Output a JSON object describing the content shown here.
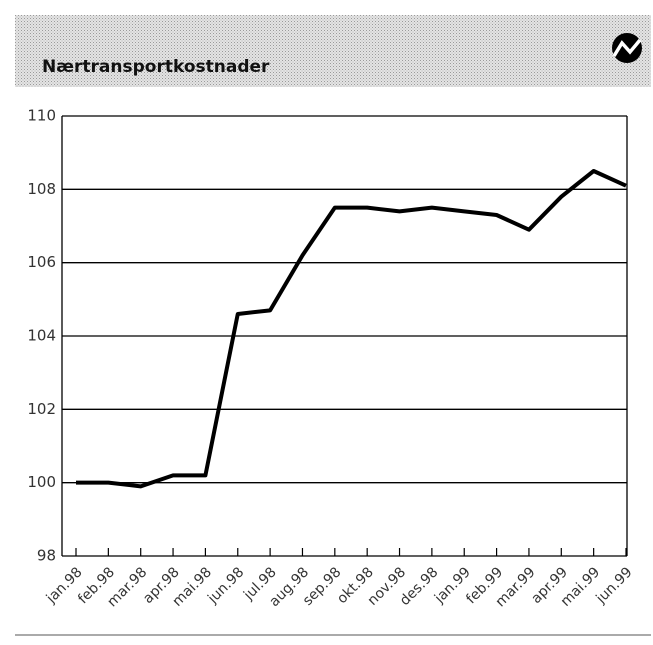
{
  "chart_data": {
    "type": "line",
    "title": "Nærtransportkostnader",
    "categories": [
      "jan.98",
      "feb.98",
      "mar.98",
      "apr.98",
      "mai.98",
      "jun.98",
      "jul.98",
      "aug.98",
      "sep.98",
      "okt.98",
      "nov.98",
      "des.98",
      "jan.99",
      "feb.99",
      "mar.99",
      "apr.99",
      "mai.99",
      "jun.99"
    ],
    "values": [
      100.0,
      100.0,
      99.9,
      100.2,
      100.2,
      104.6,
      104.7,
      106.2,
      107.5,
      107.5,
      107.4,
      107.5,
      107.4,
      107.3,
      106.9,
      107.8,
      108.5,
      108.1
    ],
    "color": "#000000",
    "ylim": [
      98,
      110
    ],
    "yticks": [
      98,
      100,
      102,
      104,
      106,
      108,
      110
    ],
    "grid": true
  }
}
